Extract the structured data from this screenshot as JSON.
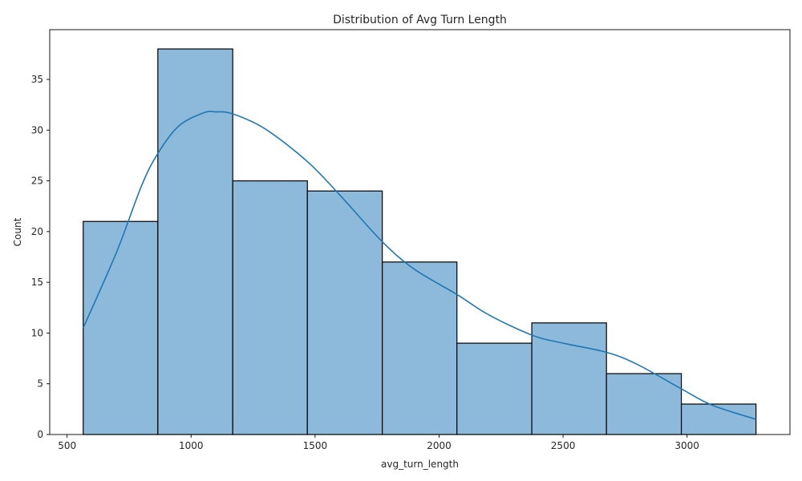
{
  "chart_data": {
    "type": "bar",
    "title": "Distribution of Avg Turn Length",
    "xlabel": "avg_turn_length",
    "ylabel": "Count",
    "bin_edges": [
      565,
      866,
      1168,
      1469,
      1771,
      2072,
      2374,
      2675,
      2977,
      3278
    ],
    "values": [
      21,
      38,
      25,
      24,
      17,
      9,
      11,
      6,
      3
    ],
    "kde_x": [
      565,
      700,
      800,
      866,
      950,
      1050,
      1100,
      1168,
      1300,
      1469,
      1600,
      1771,
      1900,
      2072,
      2200,
      2374,
      2500,
      2675,
      2800,
      2977,
      3100,
      3278
    ],
    "kde_y": [
      10.5,
      18.0,
      24.5,
      27.7,
      30.4,
      31.7,
      31.8,
      31.6,
      30.1,
      26.9,
      23.6,
      19.0,
      16.3,
      13.8,
      11.8,
      9.8,
      9.0,
      8.1,
      6.9,
      4.5,
      2.9,
      1.5
    ],
    "xlim": [
      430,
      3415
    ],
    "ylim": [
      0,
      39.9
    ],
    "xticks": [
      500,
      1000,
      1500,
      2000,
      2500,
      3000
    ],
    "yticks": [
      0,
      5,
      10,
      15,
      20,
      25,
      30,
      35
    ],
    "bar_color": "#8db9db",
    "bar_edge_color": "#000000",
    "kde_color": "#1f77b4",
    "grid": false,
    "legend": "none"
  }
}
